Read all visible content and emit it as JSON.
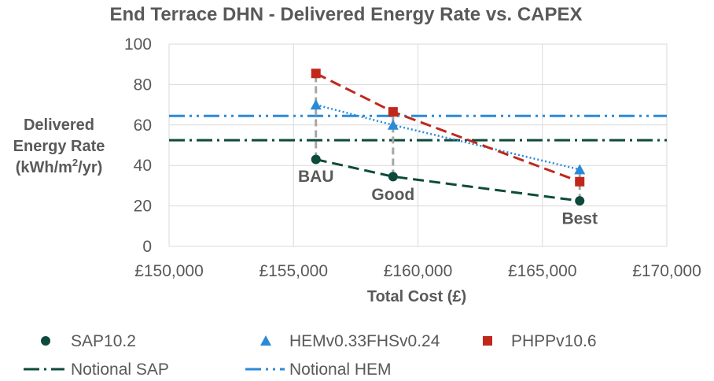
{
  "chart_data": {
    "type": "scatter",
    "title": "End Terrace DHN - Delivered Energy Rate vs. CAPEX",
    "xlabel": "Total Cost (£)",
    "ylabel_lines": [
      "Delivered",
      "Energy Rate",
      "(kWh/m",
      "2",
      "/yr)"
    ],
    "xlim": [
      150000,
      170000
    ],
    "ylim": [
      0,
      100
    ],
    "x_ticks": [
      150000,
      155000,
      160000,
      165000,
      170000
    ],
    "x_tick_labels": [
      "£150,000",
      "£155,000",
      "£160,000",
      "£165,000",
      "£170,000"
    ],
    "y_ticks": [
      0,
      20,
      40,
      60,
      80,
      100
    ],
    "y_tick_labels": [
      "0",
      "20",
      "40",
      "60",
      "80",
      "100"
    ],
    "grid": true,
    "legend_position": "bottom",
    "series": [
      {
        "name": "SAP10.2",
        "marker": "circle",
        "color": "#0d4a3c",
        "line": "dash",
        "points": [
          [
            155900,
            43
          ],
          [
            159000,
            34.5
          ],
          [
            166500,
            22.5
          ]
        ]
      },
      {
        "name": "HEMv0.33FHSv0.24",
        "marker": "triangle",
        "color": "#2b8ad8",
        "line": "dot",
        "points": [
          [
            155900,
            70
          ],
          [
            159000,
            60
          ],
          [
            166500,
            38
          ]
        ]
      },
      {
        "name": "PHPPv10.6",
        "marker": "square",
        "color": "#c0281c",
        "line": "dash",
        "points": [
          [
            155900,
            85.5
          ],
          [
            159000,
            66.5
          ],
          [
            166500,
            32
          ]
        ]
      }
    ],
    "reference_lines": [
      {
        "name": "Notional SAP",
        "y": 52.5,
        "color": "#0d4a3c",
        "style": "dash-dot"
      },
      {
        "name": "Notional HEM",
        "y": 64.5,
        "color": "#2b8ad8",
        "style": "dash-dot-dot"
      }
    ],
    "drop_lines": [
      {
        "x": 155900,
        "y_from": 43,
        "y_to": 85.5
      },
      {
        "x": 159000,
        "y_from": 34.5,
        "y_to": 66.5
      },
      {
        "x": 166500,
        "y_from": 22.5,
        "y_to": 38
      }
    ],
    "annotations": [
      {
        "text": "BAU",
        "x": 155900,
        "y": 32
      },
      {
        "text": "Good",
        "x": 159000,
        "y": 23
      },
      {
        "text": "Best",
        "x": 166500,
        "y": 11
      }
    ],
    "legend_items": [
      {
        "label": "SAP10.2",
        "kind": "marker",
        "marker": "circle",
        "color": "#0d4a3c"
      },
      {
        "label": "HEMv0.33FHSv0.24",
        "kind": "marker",
        "marker": "triangle",
        "color": "#2b8ad8"
      },
      {
        "label": "PHPPv10.6",
        "kind": "marker",
        "marker": "square",
        "color": "#c0281c"
      },
      {
        "label": "Notional SAP",
        "kind": "line",
        "style": "dash-dot",
        "color": "#0d4a3c"
      },
      {
        "label": "Notional HEM",
        "kind": "line",
        "style": "dash-dot-dot",
        "color": "#2b8ad8"
      }
    ]
  }
}
